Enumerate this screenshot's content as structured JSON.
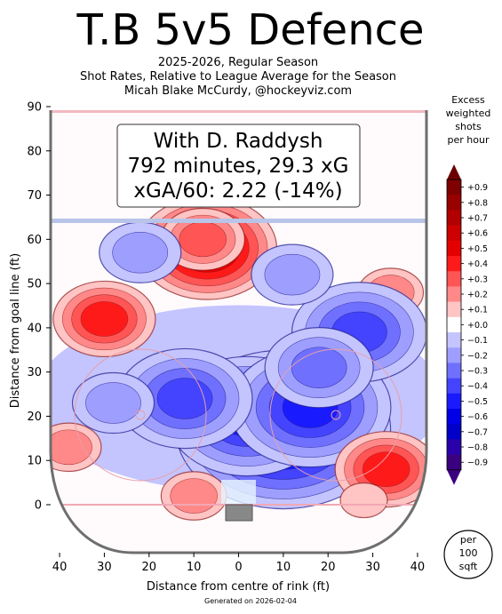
{
  "header": {
    "title": "T.B 5v5 Defence",
    "subtitle_lines": [
      "2025-2026, Regular Season",
      "Shot Rates, Relative to League Average for the Season",
      "Micah Blake McCurdy, @hockeyviz.com"
    ]
  },
  "infobox": {
    "lines": [
      "With D. Raddysh",
      "792 minutes, 29.3 xG",
      "xGA/60: 2.22 (-14%)"
    ]
  },
  "colorbar": {
    "title_lines": [
      "Excess",
      "weighted",
      "shots",
      "per hour"
    ],
    "labels": [
      "+0.9",
      "+0.8",
      "+0.7",
      "+0.6",
      "+0.5",
      "+0.4",
      "+0.3",
      "+0.2",
      "+0.1",
      "+0.0",
      "−0.1",
      "−0.2",
      "−0.3",
      "−0.4",
      "−0.5",
      "−0.6",
      "−0.7",
      "−0.8",
      "−0.9"
    ],
    "colors": [
      "#7f0000",
      "#990000",
      "#b20000",
      "#cc0000",
      "#e50000",
      "#ff1a1a",
      "#ff5555",
      "#ff8888",
      "#ffc4c4",
      "#ffffff",
      "#c4c4ff",
      "#9e9eff",
      "#7070ff",
      "#4444ff",
      "#1a1aff",
      "#0000e6",
      "#0000c8",
      "#2a00aa",
      "#3a0080"
    ],
    "unit_lines": [
      "per",
      "100",
      "sqft"
    ]
  },
  "footer": {
    "generated": "Generated on 2026-02-04"
  },
  "chart_data": {
    "type": "heatmap",
    "xlabel": "Distance from centre of rink (ft)",
    "ylabel": "Distance from goal line (ft)",
    "xlim": [
      -42,
      42
    ],
    "ylim": [
      -11,
      90
    ],
    "xticks": [
      -40,
      -30,
      -20,
      -10,
      0,
      10,
      20,
      30,
      40
    ],
    "xtick_labels": [
      "40",
      "30",
      "20",
      "10",
      "0",
      "10",
      "20",
      "30",
      "40"
    ],
    "yticks": [
      0,
      10,
      20,
      30,
      40,
      50,
      60,
      70,
      80,
      90
    ],
    "ytick_labels": [
      "0",
      "10",
      "20",
      "30",
      "40",
      "50",
      "60",
      "70",
      "80",
      "90"
    ],
    "blue_line_ft": 63.5,
    "hotspots": [
      {
        "x": -7,
        "y": 58,
        "value": 0.6
      },
      {
        "x": -30,
        "y": 42,
        "value": 0.4
      },
      {
        "x": 34,
        "y": 48,
        "value": 0.2
      },
      {
        "x": -8,
        "y": 60,
        "value": 0.3
      },
      {
        "x": 10,
        "y": 17,
        "value": -0.7
      },
      {
        "x": 2,
        "y": 20,
        "value": -0.5
      },
      {
        "x": 16,
        "y": 22,
        "value": -0.5
      },
      {
        "x": -12,
        "y": 24,
        "value": -0.4
      },
      {
        "x": 27,
        "y": 39,
        "value": -0.4
      },
      {
        "x": 18,
        "y": 31,
        "value": -0.3
      },
      {
        "x": 12,
        "y": 52,
        "value": -0.2
      },
      {
        "x": -22,
        "y": 57,
        "value": -0.15
      },
      {
        "x": -28,
        "y": 23,
        "value": -0.2
      },
      {
        "x": 33,
        "y": 8,
        "value": 0.4
      },
      {
        "x": -38,
        "y": 13,
        "value": 0.15
      },
      {
        "x": -10,
        "y": 2,
        "value": 0.15
      },
      {
        "x": 28,
        "y": 1,
        "value": 0.1
      }
    ]
  }
}
